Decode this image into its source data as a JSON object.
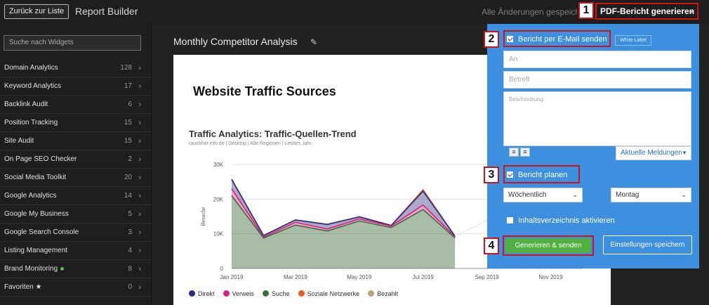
{
  "topbar": {
    "back_label": "Zurück zur Liste",
    "app_title": "Report Builder",
    "saved_status": "Alle Änderungen gespeichert",
    "pdf_button": "PDF-Bericht generieren"
  },
  "markers": [
    "1",
    "2",
    "3",
    "4"
  ],
  "sidebar": {
    "search_placeholder": "Suche nach Widgets",
    "items": [
      {
        "label": "Domain Analytics",
        "count": "128"
      },
      {
        "label": "Keyword Analytics",
        "count": "17"
      },
      {
        "label": "Backlink Audit",
        "count": "6"
      },
      {
        "label": "Position Tracking",
        "count": "15"
      },
      {
        "label": "Site Audit",
        "count": "15"
      },
      {
        "label": "On Page SEO Checker",
        "count": "2"
      },
      {
        "label": "Social Media Toolkit",
        "count": "20"
      },
      {
        "label": "Google Analytics",
        "count": "14"
      },
      {
        "label": "Google My Business",
        "count": "5"
      },
      {
        "label": "Google Search Console",
        "count": "3"
      },
      {
        "label": "Listing Management",
        "count": "4"
      },
      {
        "label": "Brand Monitoring",
        "count": "8"
      },
      {
        "label": "Favoriten ★",
        "count": "0"
      }
    ]
  },
  "main": {
    "report_title": "Monthly Competitor Analysis",
    "page_heading": "Website Traffic Sources",
    "chart_title": "Traffic Analytics: Traffic-Quellen-Trend",
    "chart_subtitle": "rauchfrei-info.de | Desktop | Alle Regionen | Letztes Jahr"
  },
  "chart_data": {
    "type": "area",
    "title": "Traffic Analytics: Traffic-Quellen-Trend",
    "xlabel": "",
    "ylabel": "Besuche",
    "ylim": [
      0,
      30000
    ],
    "y_ticks": [
      "0",
      "10K",
      "20K",
      "30K"
    ],
    "x_ticks": [
      "Jan 2019",
      "Mar 2019",
      "May 2019",
      "Jul 2019",
      "Sep 2019",
      "Nov 2019"
    ],
    "x": [
      "2019-01",
      "2019-02",
      "2019-03",
      "2019-04",
      "2019-05",
      "2019-06",
      "2019-07",
      "2019-08"
    ],
    "series": [
      {
        "name": "Suche",
        "color": "#3d6b3d",
        "values": [
          21000,
          8800,
          12500,
          10800,
          13700,
          11800,
          17000,
          8800
        ]
      },
      {
        "name": "Verweis",
        "color": "#d6247c",
        "values": [
          2000,
          300,
          800,
          600,
          600,
          400,
          1300,
          300
        ]
      },
      {
        "name": "Direkt",
        "color": "#2d2b7d",
        "values": [
          2700,
          400,
          700,
          1300,
          600,
          200,
          4000,
          200
        ]
      },
      {
        "name": "Soziale Netzwerke",
        "color": "#e85a24",
        "values": [
          0,
          0,
          0,
          0,
          0,
          0,
          400,
          0
        ]
      },
      {
        "name": "Bezahlt",
        "color": "#b8a48a",
        "values": [
          0,
          0,
          0,
          0,
          0,
          0,
          0,
          0
        ]
      }
    ],
    "legend": [
      "Direkt",
      "Verweis",
      "Suche",
      "Soziale Netzwerke",
      "Bezahlt"
    ],
    "legend_position": "bottom"
  },
  "panel": {
    "email_checkbox": "Bericht per E-Mail senden",
    "white_label": "White-Label",
    "to_placeholder": "An",
    "subject_placeholder": "Betreff",
    "description_placeholder": "Beschreibung",
    "notifications_select": "Aktuelle Meldungen",
    "schedule_checkbox": "Bericht planen",
    "frequency": "Wöchentlich",
    "weekday": "Montag",
    "toc_checkbox": "Inhaltsverzeichnis aktivieren",
    "generate_button": "Generieren & senden",
    "save_settings_button": "Einstellungen speichern"
  }
}
